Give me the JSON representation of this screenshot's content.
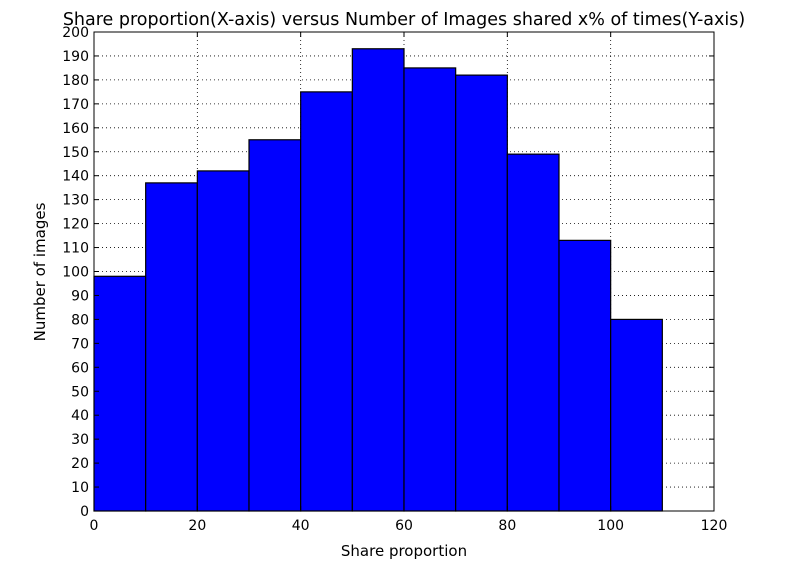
{
  "chart_data": {
    "type": "bar",
    "title": "Share proportion(X-axis) versus Number of Images shared x% of times(Y-axis)",
    "xlabel": "Share proportion",
    "ylabel": "Number of images",
    "xlim": [
      0,
      120
    ],
    "ylim": [
      0,
      200
    ],
    "x_ticks": [
      0,
      20,
      40,
      60,
      80,
      100,
      120
    ],
    "y_ticks": [
      0,
      10,
      20,
      30,
      40,
      50,
      60,
      70,
      80,
      90,
      100,
      110,
      120,
      130,
      140,
      150,
      160,
      170,
      180,
      190,
      200
    ],
    "grid": true,
    "bar_color": "#0000ff",
    "bins": [
      {
        "start": 0,
        "end": 10,
        "value": 98
      },
      {
        "start": 10,
        "end": 20,
        "value": 137
      },
      {
        "start": 20,
        "end": 30,
        "value": 142
      },
      {
        "start": 30,
        "end": 40,
        "value": 155
      },
      {
        "start": 40,
        "end": 50,
        "value": 175
      },
      {
        "start": 50,
        "end": 60,
        "value": 193
      },
      {
        "start": 60,
        "end": 70,
        "value": 185
      },
      {
        "start": 70,
        "end": 80,
        "value": 182
      },
      {
        "start": 80,
        "end": 90,
        "value": 149
      },
      {
        "start": 90,
        "end": 100,
        "value": 113
      },
      {
        "start": 100,
        "end": 110,
        "value": 80
      }
    ]
  }
}
